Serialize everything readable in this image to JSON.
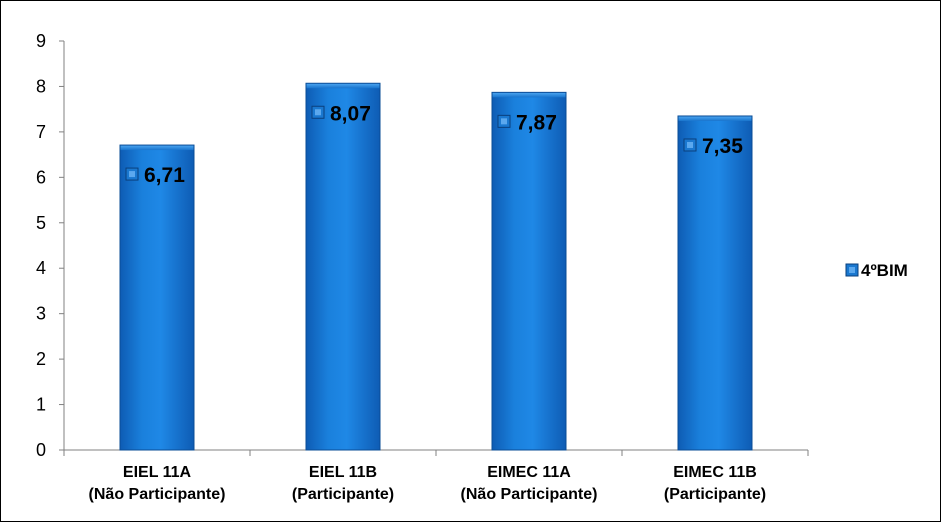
{
  "chart_data": {
    "type": "bar",
    "categories": [
      [
        "EIEL 11A",
        "(Não Participante)"
      ],
      [
        "EIEL 11B",
        "(Participante)"
      ],
      [
        "EIMEC 11A",
        "(Não Participante)"
      ],
      [
        "EIMEC 11B",
        "(Participante)"
      ]
    ],
    "series": [
      {
        "name": "4ºBIM",
        "values": [
          6.71,
          8.07,
          7.87,
          7.35
        ],
        "labels": [
          "6,71",
          "8,07",
          "7,87",
          "7,35"
        ],
        "color": "#1874CD"
      }
    ],
    "ylim": [
      0,
      9
    ],
    "yticks": [
      0,
      1,
      2,
      3,
      4,
      5,
      6,
      7,
      8,
      9
    ],
    "grid": false,
    "legend_position": "right"
  }
}
